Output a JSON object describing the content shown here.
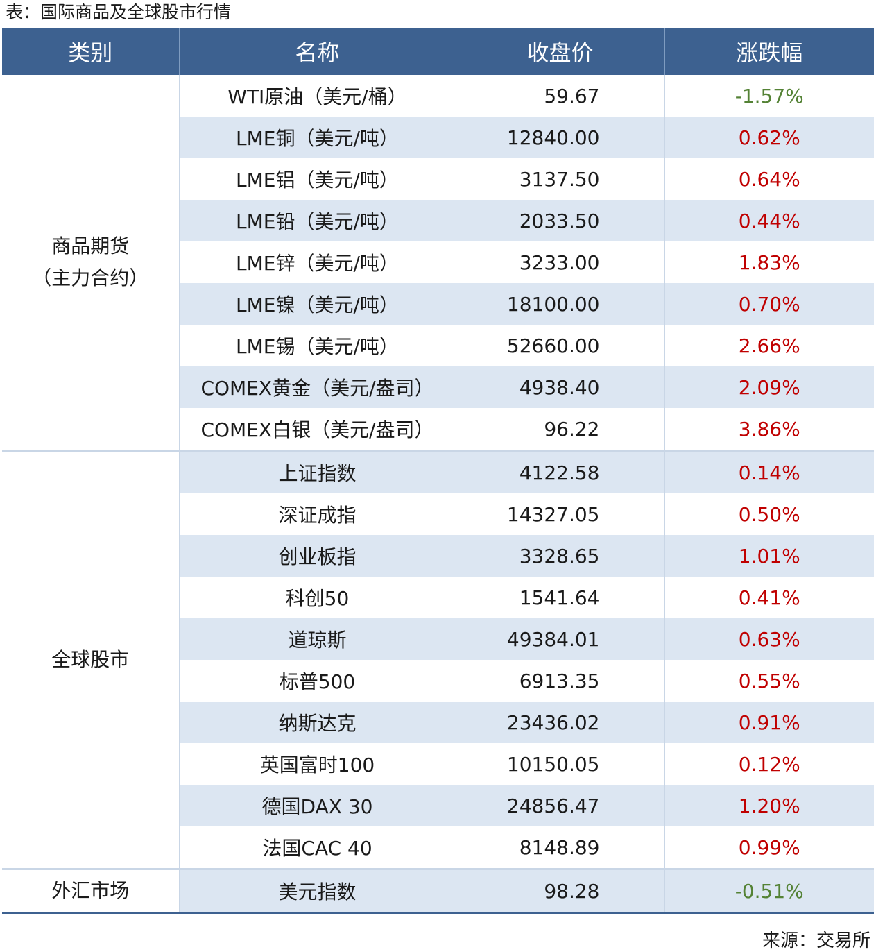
{
  "title": "表：国际商品及全球股市行情",
  "header": [
    "类别",
    "名称",
    "收盘价",
    "涨跌幅"
  ],
  "up_color": "#c00000",
  "down_color": "#548235",
  "groups": [
    {
      "category": "商品期货\n（主力合约）",
      "rows": [
        {
          "name": "WTI原油（美元/桶）",
          "close": "59.67",
          "change": "-1.57%"
        },
        {
          "name": "LME铜（美元/吨）",
          "close": "12840.00",
          "change": "0.62%"
        },
        {
          "name": "LME铝（美元/吨）",
          "close": "3137.50",
          "change": "0.64%"
        },
        {
          "name": "LME铅（美元/吨）",
          "close": "2033.50",
          "change": "0.44%"
        },
        {
          "name": "LME锌（美元/吨）",
          "close": "3233.00",
          "change": "1.83%"
        },
        {
          "name": "LME镍（美元/吨）",
          "close": "18100.00",
          "change": "0.70%"
        },
        {
          "name": "LME锡（美元/吨）",
          "close": "52660.00",
          "change": "2.66%"
        },
        {
          "name": "COMEX黄金（美元/盎司）",
          "close": "4938.40",
          "change": "2.09%"
        },
        {
          "name": "COMEX白银（美元/盎司）",
          "close": "96.22",
          "change": "3.86%"
        }
      ]
    },
    {
      "category": "全球股市",
      "rows": [
        {
          "name": "上证指数",
          "close": "4122.58",
          "change": "0.14%"
        },
        {
          "name": "深证成指",
          "close": "14327.05",
          "change": "0.50%"
        },
        {
          "name": "创业板指",
          "close": "3328.65",
          "change": "1.01%"
        },
        {
          "name": "科创50",
          "close": "1541.64",
          "change": "0.41%"
        },
        {
          "name": "道琼斯",
          "close": "49384.01",
          "change": "0.63%"
        },
        {
          "name": "标普500",
          "close": "6913.35",
          "change": "0.55%"
        },
        {
          "name": "纳斯达克",
          "close": "23436.02",
          "change": "0.91%"
        },
        {
          "name": "英国富时100",
          "close": "10150.05",
          "change": "0.12%"
        },
        {
          "name": "德国DAX 30",
          "close": "24856.47",
          "change": "1.20%"
        },
        {
          "name": "法国CAC 40",
          "close": "8148.89",
          "change": "0.99%"
        }
      ]
    },
    {
      "category": "外汇市场",
      "rows": [
        {
          "name": "美元指数",
          "close": "98.28",
          "change": "-0.51%"
        }
      ]
    }
  ],
  "source": "来源：交易所"
}
